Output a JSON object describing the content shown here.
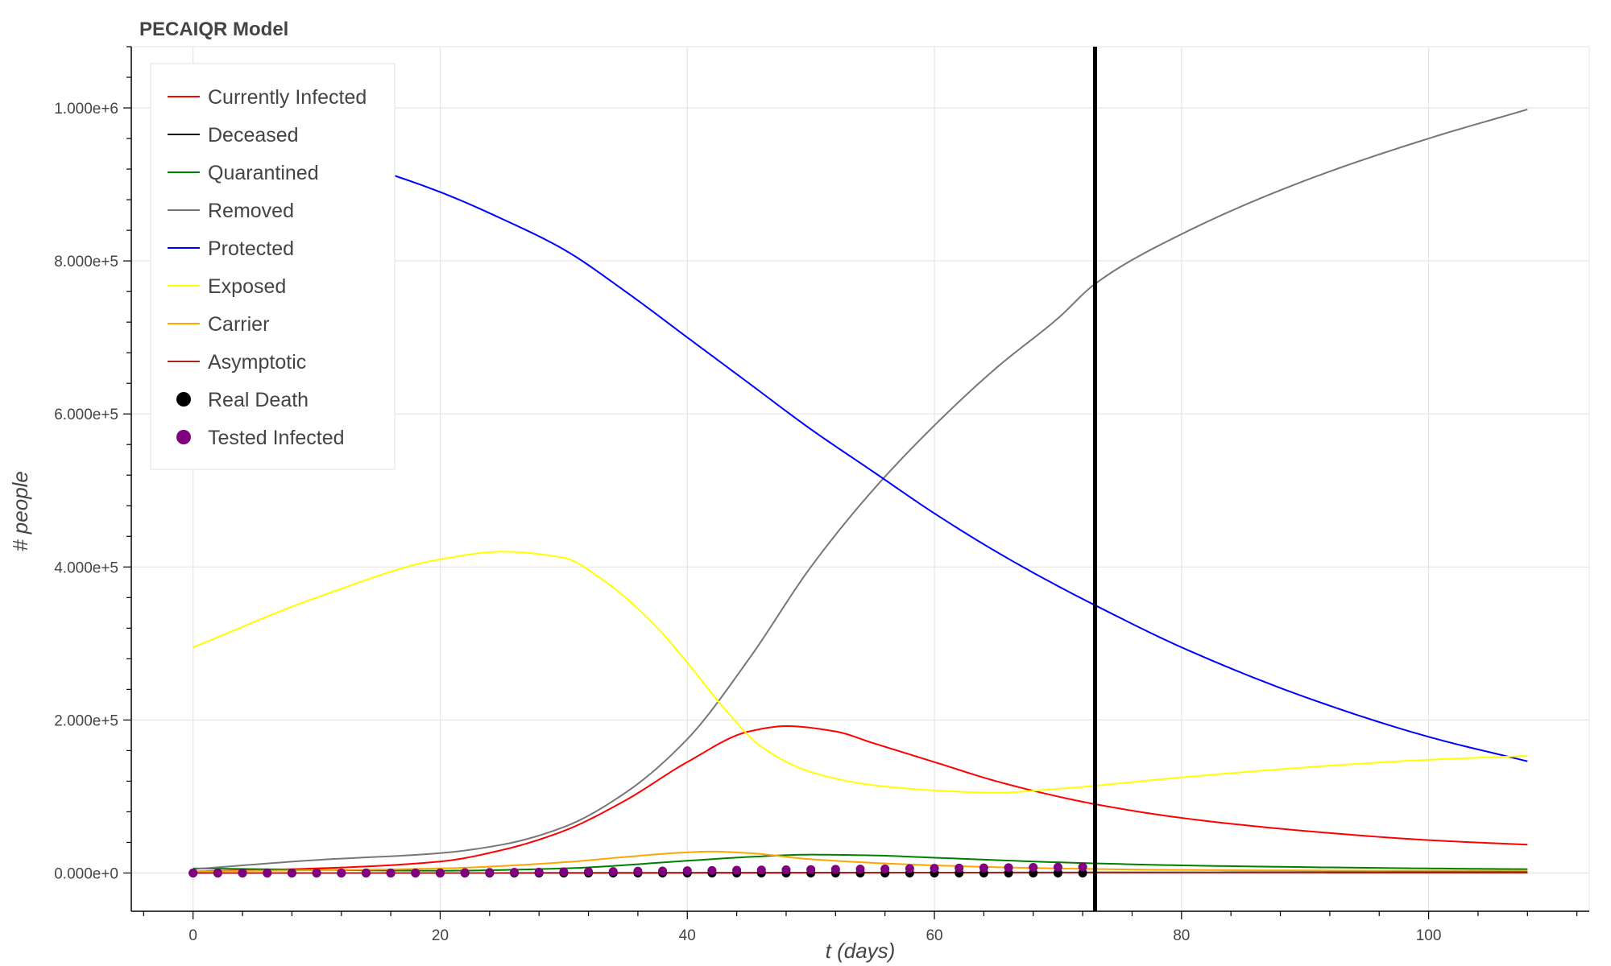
{
  "chart_data": {
    "type": "line",
    "title": "PECAIQR Model",
    "xlabel": "t (days)",
    "ylabel": "# people",
    "xlim": [
      -5,
      113
    ],
    "ylim": [
      -50000,
      1080000
    ],
    "x_ticks": [
      0,
      20,
      40,
      60,
      80,
      100
    ],
    "y_ticks": [
      0,
      200000,
      400000,
      600000,
      800000,
      1000000
    ],
    "y_tick_labels": [
      "0.000e+0",
      "2.000e+5",
      "4.000e+5",
      "6.000e+5",
      "8.000e+5",
      "1.000e+6"
    ],
    "grid": true,
    "legend_position": "top-left",
    "vertical_line": {
      "x": 73,
      "color": "#000000"
    },
    "series": [
      {
        "name": "Currently Infected",
        "color": "#ff0000",
        "x": [
          0,
          10,
          20,
          25,
          30,
          35,
          40,
          45,
          48,
          52,
          55,
          60,
          65,
          70,
          73,
          80,
          90,
          100,
          108
        ],
        "y": [
          2000,
          6000,
          15000,
          30000,
          55000,
          95000,
          145000,
          185000,
          192000,
          185000,
          170000,
          145000,
          120000,
          100000,
          90000,
          72000,
          55000,
          43000,
          37000
        ]
      },
      {
        "name": "Deceased",
        "color": "#000000",
        "x": [
          0,
          20,
          40,
          60,
          80,
          100,
          108
        ],
        "y": [
          0,
          0,
          200,
          500,
          800,
          1000,
          1100
        ]
      },
      {
        "name": "Quarantined",
        "color": "#008000",
        "x": [
          0,
          20,
          30,
          40,
          45,
          50,
          55,
          60,
          70,
          80,
          100,
          108
        ],
        "y": [
          6000,
          3000,
          6000,
          16000,
          21000,
          24000,
          23000,
          20000,
          14000,
          10000,
          6000,
          5000
        ]
      },
      {
        "name": "Removed",
        "color": "#777777",
        "x": [
          0,
          10,
          20,
          25,
          30,
          35,
          40,
          45,
          50,
          55,
          60,
          65,
          70,
          73,
          80,
          90,
          100,
          108
        ],
        "y": [
          5000,
          17000,
          26000,
          37000,
          60000,
          105000,
          175000,
          280000,
          400000,
          500000,
          585000,
          660000,
          725000,
          770000,
          835000,
          905000,
          960000,
          998000
        ]
      },
      {
        "name": "Protected",
        "color": "#0000ff",
        "x": [
          0,
          10,
          20,
          25,
          30,
          35,
          40,
          45,
          50,
          55,
          60,
          65,
          70,
          73,
          80,
          90,
          100,
          108
        ],
        "y": [
          1000000,
          945000,
          890000,
          855000,
          815000,
          760000,
          700000,
          640000,
          580000,
          525000,
          470000,
          420000,
          375000,
          350000,
          295000,
          230000,
          178000,
          146000
        ]
      },
      {
        "name": "Exposed",
        "color": "#ffff00",
        "x": [
          0,
          10,
          20,
          25,
          30,
          33,
          37,
          40,
          43,
          46,
          50,
          55,
          60,
          65,
          70,
          80,
          90,
          100,
          108
        ],
        "y": [
          295000,
          360000,
          410000,
          420000,
          412000,
          385000,
          330000,
          275000,
          215000,
          165000,
          132000,
          115000,
          108000,
          105000,
          110000,
          125000,
          138000,
          148000,
          153000
        ]
      },
      {
        "name": "Carrier",
        "color": "#ffa500",
        "x": [
          0,
          20,
          30,
          35,
          40,
          42,
          45,
          50,
          60,
          70,
          80,
          100,
          108
        ],
        "y": [
          2000,
          6000,
          14000,
          21000,
          27000,
          28000,
          26000,
          18000,
          10000,
          6000,
          4000,
          3000,
          3000
        ]
      },
      {
        "name": "Asymptotic",
        "color": "#aa2222",
        "x": [
          0,
          20,
          40,
          60,
          80,
          100,
          108
        ],
        "y": [
          0,
          0,
          300,
          500,
          500,
          400,
          400
        ]
      }
    ],
    "scatter_series": [
      {
        "name": "Real Death",
        "color": "#000000",
        "x": [
          0,
          2,
          4,
          6,
          8,
          10,
          12,
          14,
          16,
          18,
          20,
          22,
          24,
          26,
          28,
          30,
          32,
          34,
          36,
          38,
          40,
          42,
          44,
          46,
          48,
          50,
          52,
          54,
          56,
          58,
          60,
          62,
          64,
          66,
          68,
          70,
          72
        ],
        "y": [
          0,
          0,
          0,
          0,
          0,
          0,
          0,
          0,
          0,
          0,
          0,
          0,
          0,
          0,
          0,
          0,
          0,
          0,
          0,
          0,
          0,
          0,
          0,
          0,
          0,
          0,
          0,
          0,
          0,
          0,
          0,
          0,
          0,
          0,
          0,
          0,
          0
        ]
      },
      {
        "name": "Tested Infected",
        "color": "#800080",
        "x": [
          0,
          2,
          4,
          6,
          8,
          10,
          12,
          14,
          16,
          18,
          20,
          22,
          24,
          26,
          28,
          30,
          32,
          34,
          36,
          38,
          40,
          42,
          44,
          46,
          48,
          50,
          52,
          54,
          56,
          58,
          60,
          62,
          64,
          66,
          68,
          70,
          72
        ],
        "y": [
          0,
          0,
          0,
          0,
          0,
          0,
          0,
          0,
          0,
          0,
          0,
          500,
          800,
          1000,
          1200,
          1500,
          1800,
          2000,
          2300,
          2600,
          3000,
          3300,
          3600,
          3900,
          4200,
          4500,
          4800,
          5100,
          5400,
          5800,
          6100,
          6400,
          6700,
          7000,
          7300,
          7600,
          7900
        ]
      }
    ]
  }
}
